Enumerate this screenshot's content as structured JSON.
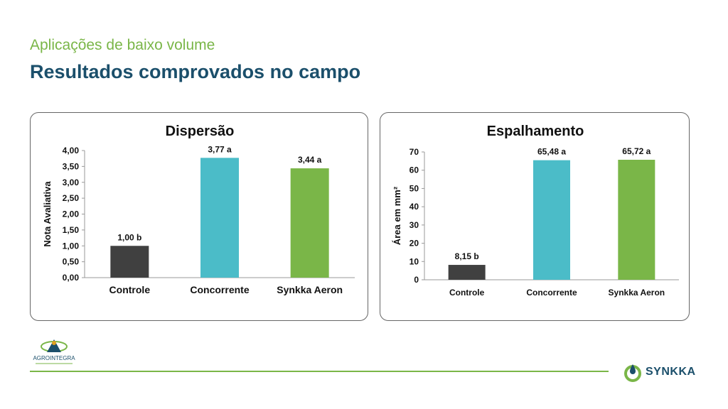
{
  "header": {
    "subtitle": "Aplicações de baixo volume",
    "title": "Resultados comprovados no campo"
  },
  "brand": {
    "left_logo_text": "AGROINTEGRA",
    "right_logo_text": "SYNKKA",
    "accent": "#7ab648",
    "navy": "#1b4f6b"
  },
  "chart_data": [
    {
      "type": "bar",
      "title": "Dispersão",
      "ylabel": "Nota Avaliativa",
      "xlabel": "",
      "ylim": [
        0,
        4
      ],
      "yticks": [
        0,
        0.5,
        1,
        1.5,
        2,
        2.5,
        3,
        3.5,
        4
      ],
      "ytick_labels": [
        "0,00",
        "0,50",
        "1,00",
        "1,50",
        "2,00",
        "2,50",
        "3,00",
        "3,50",
        "4,00"
      ],
      "grid": false,
      "categories": [
        "Controle",
        "Concorrente",
        "Synkka Aeron"
      ],
      "values": [
        1.0,
        3.77,
        3.44
      ],
      "data_labels": [
        "1,00 b",
        "3,77 a",
        "3,44 a"
      ],
      "colors": [
        "#404040",
        "#4bbcc8",
        "#7ab648"
      ]
    },
    {
      "type": "bar",
      "title": "Espalhamento",
      "ylabel": "Área em mm²",
      "xlabel": "",
      "ylim": [
        0,
        70
      ],
      "yticks": [
        0,
        10,
        20,
        30,
        40,
        50,
        60,
        70
      ],
      "ytick_labels": [
        "0",
        "10",
        "20",
        "30",
        "40",
        "50",
        "60",
        "70"
      ],
      "grid": false,
      "categories": [
        "Controle",
        "Concorrente",
        "Synkka Aeron"
      ],
      "values": [
        8.15,
        65.48,
        65.72
      ],
      "data_labels": [
        "8,15 b",
        "65,48 a",
        "65,72 a"
      ],
      "colors": [
        "#404040",
        "#4bbcc8",
        "#7ab648"
      ]
    }
  ]
}
